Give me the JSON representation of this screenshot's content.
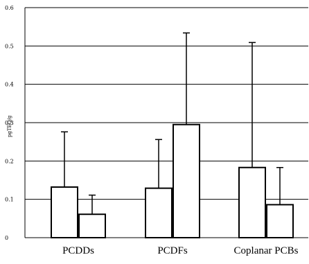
{
  "chart_data": {
    "type": "bar",
    "title": "",
    "xlabel": "",
    "ylabel": "pgTEQ/g",
    "ylim": [
      0,
      0.6
    ],
    "yticks": [
      "0",
      "0.1",
      "0.2",
      "0.3",
      "0.4",
      "0.5",
      "0.6"
    ],
    "grid": true,
    "legend": "none",
    "categories": [
      "PCDDs",
      "PCDFs",
      "Coplanar PCBs"
    ],
    "series": [
      {
        "values": [
          0.132,
          0.129,
          0.183
        ],
        "error_upper": [
          0.276,
          0.256,
          0.509
        ]
      },
      {
        "values": [
          0.061,
          0.295,
          0.086
        ],
        "error_upper": [
          0.111,
          0.534,
          0.183
        ]
      }
    ],
    "colors": {
      "bar_fill": "#ffffff",
      "stroke": "#000000"
    }
  }
}
